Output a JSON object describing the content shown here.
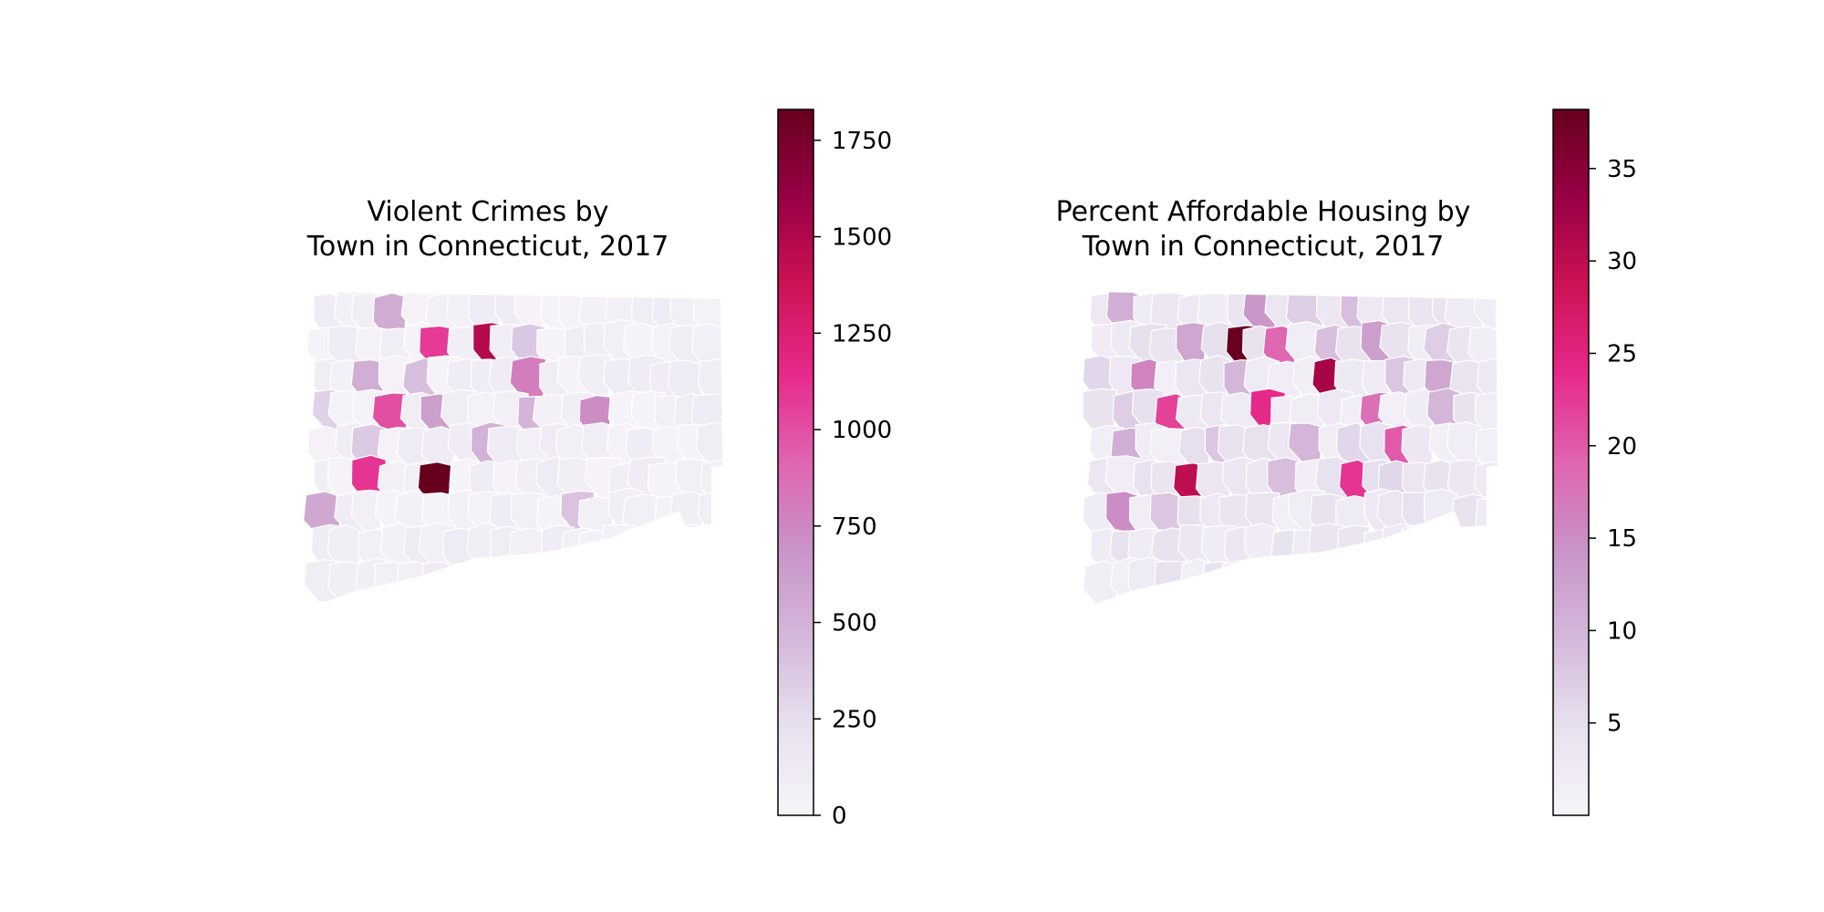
{
  "maps": [
    {
      "id": "violent-crimes",
      "title_line1": "Violent Crimes by",
      "title_line2": "Town in Connecticut, 2017",
      "colorbar": {
        "min": 0,
        "max": 1830,
        "ticks": [
          0,
          250,
          500,
          750,
          1000,
          1250,
          1500,
          1750
        ],
        "tick_labels": [
          "0",
          "250",
          "500",
          "750",
          "1000",
          "1250",
          "1500",
          "1750"
        ]
      },
      "highlighted_values": [
        1830,
        1480,
        1080,
        1100,
        1000,
        800,
        720,
        620,
        560,
        540,
        520,
        500,
        480,
        420,
        400,
        380,
        360,
        320
      ]
    },
    {
      "id": "affordable-housing",
      "title_line1": "Percent Affordable Housing by",
      "title_line2": "Town in Connecticut, 2017",
      "colorbar": {
        "min": 0,
        "max": 38.2,
        "ticks": [
          5,
          10,
          15,
          20,
          25,
          30,
          35
        ],
        "tick_labels": [
          "5",
          "10",
          "15",
          "20",
          "25",
          "30",
          "35"
        ]
      },
      "highlighted_values": [
        38,
        32,
        30,
        24,
        23,
        22,
        20,
        19,
        18,
        16,
        15,
        14,
        13,
        12,
        12,
        11,
        11,
        10,
        10,
        10,
        9,
        9,
        9,
        8,
        8,
        8,
        7,
        7,
        7,
        6,
        6,
        6
      ]
    }
  ],
  "colors": {
    "ramp": [
      "#f7f4f9",
      "#e7e1ef",
      "#d4b9da",
      "#c994c7",
      "#df65b0",
      "#e7298a",
      "#ce1256",
      "#980043",
      "#67001f"
    ],
    "border": "#ffffff"
  }
}
